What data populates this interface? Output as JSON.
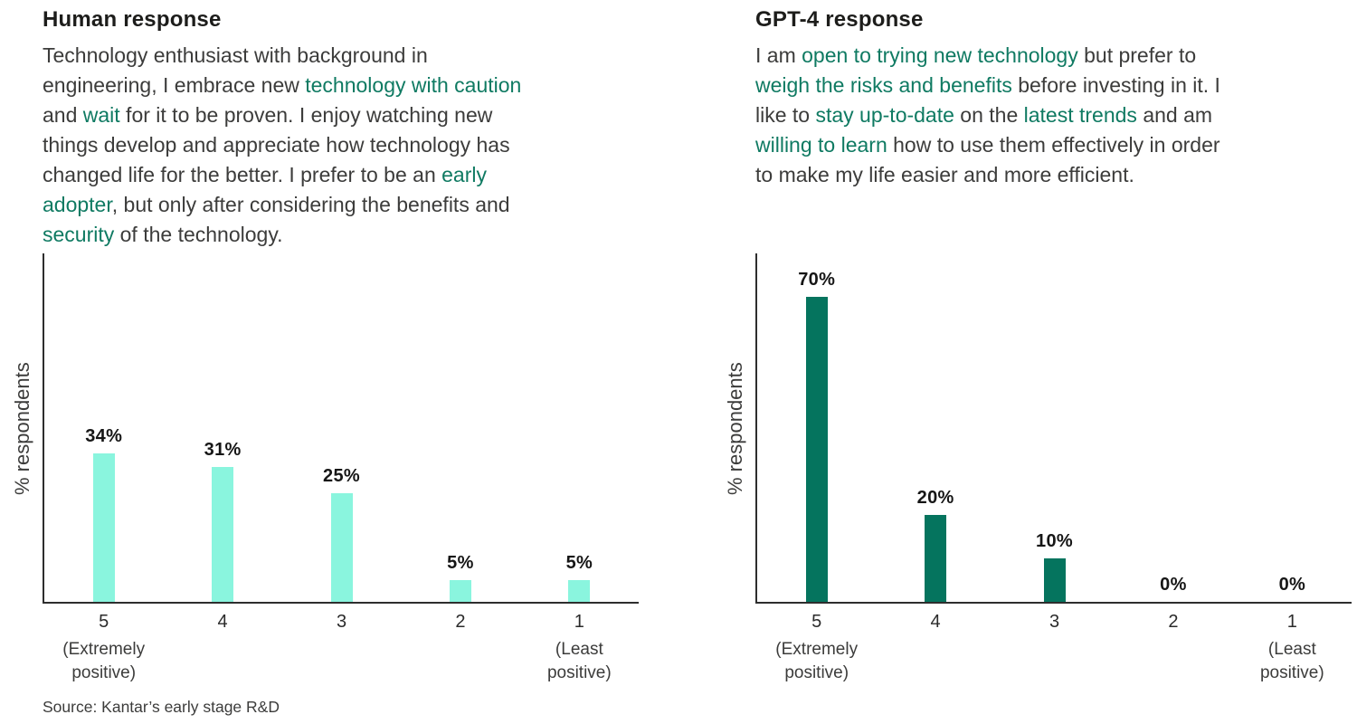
{
  "source": "Source: Kantar’s early stage R&D",
  "panels": [
    {
      "title": "Human response",
      "lines": [
        [
          {
            "t": "Technology enthusiast with background in"
          }
        ],
        [
          {
            "t": "engineering, I embrace new "
          },
          {
            "t": "technology with caution",
            "hl": true
          }
        ],
        [
          {
            "t": "and "
          },
          {
            "t": "wait",
            "hl": true
          },
          {
            "t": " for it to be proven. I enjoy watching new"
          }
        ],
        [
          {
            "t": "things develop and appreciate how technology has"
          }
        ],
        [
          {
            "t": "changed life for the better. I prefer to be an "
          },
          {
            "t": "early",
            "hl": true
          }
        ],
        [
          {
            "t": "adopter",
            "hl": true
          },
          {
            "t": ", but only after considering the benefits and"
          }
        ],
        [
          {
            "t": "security",
            "hl": true
          },
          {
            "t": " of the technology."
          }
        ]
      ]
    },
    {
      "title": "GPT-4 response",
      "lines": [
        [
          {
            "t": "I am "
          },
          {
            "t": "open to trying new technology",
            "hl": true
          },
          {
            "t": " but prefer to"
          }
        ],
        [
          {
            "t": "weigh the risks and benefits",
            "hl": true
          },
          {
            "t": " before investing in it. I"
          }
        ],
        [
          {
            "t": "like to "
          },
          {
            "t": "stay up-to-date",
            "hl": true
          },
          {
            "t": " on the "
          },
          {
            "t": "latest trends",
            "hl": true
          },
          {
            "t": " and am"
          }
        ],
        [
          {
            "t": "willing to learn",
            "hl": true
          },
          {
            "t": " how to use them effectively in order"
          }
        ],
        [
          {
            "t": "to make my life easier and more efficient."
          }
        ]
      ]
    }
  ],
  "chart_data": [
    {
      "type": "bar",
      "title": "Human response",
      "categories": [
        "5",
        "4",
        "3",
        "2",
        "1"
      ],
      "category_sublabels": [
        [
          "(Extremely",
          "positive)"
        ],
        [],
        [],
        [],
        [
          "(Least",
          "positive)"
        ]
      ],
      "values": [
        34,
        31,
        25,
        5,
        5
      ],
      "labels": [
        "34%",
        "31%",
        "25%",
        "5%",
        "5%"
      ],
      "xlabel": "",
      "ylabel": "% respondents",
      "ylim": [
        0,
        80
      ],
      "grid": false,
      "legend": false,
      "bar_color": "#8AF5DE"
    },
    {
      "type": "bar",
      "title": "GPT-4 response",
      "categories": [
        "5",
        "4",
        "3",
        "2",
        "1"
      ],
      "category_sublabels": [
        [
          "(Extremely",
          "positive)"
        ],
        [],
        [],
        [],
        [
          "(Least",
          "positive)"
        ]
      ],
      "values": [
        70,
        20,
        10,
        0,
        0
      ],
      "labels": [
        "70%",
        "20%",
        "10%",
        "0%",
        "0%"
      ],
      "xlabel": "",
      "ylabel": "% respondents",
      "ylim": [
        0,
        80
      ],
      "grid": false,
      "legend": false,
      "bar_color": "#05745E"
    }
  ],
  "colors": {
    "highlight_green": "#0F7A62",
    "bar_mint": "#8AF5DE",
    "bar_dark_green": "#05745E",
    "axis": "#2E2E2E",
    "body_text": "#3C3C3B",
    "title_text": "#1D1D1B"
  }
}
